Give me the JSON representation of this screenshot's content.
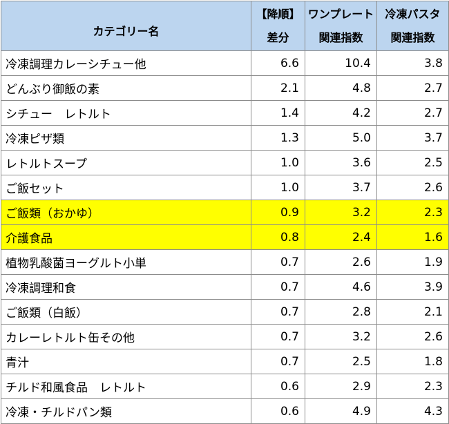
{
  "table": {
    "headers": {
      "category": "カテゴリー名",
      "diff_line1": "【降順】",
      "diff_line2": "差分",
      "oneplate_line1": "ワンプレート",
      "oneplate_line2": "関連指数",
      "pasta_line1": "冷凍パスタ",
      "pasta_line2": "関連指数"
    },
    "highlight_color": "#ffff00",
    "header_color": "#bcd5ef",
    "rows": [
      {
        "name": "冷凍調理カレーシチュー他",
        "diff": "6.6",
        "oneplate": "10.4",
        "pasta": "3.8",
        "highlight": false
      },
      {
        "name": "どんぶり御飯の素",
        "diff": "2.1",
        "oneplate": "4.8",
        "pasta": "2.7",
        "highlight": false
      },
      {
        "name": "シチュー　レトルト",
        "diff": "1.4",
        "oneplate": "4.2",
        "pasta": "2.7",
        "highlight": false
      },
      {
        "name": "冷凍ピザ類",
        "diff": "1.3",
        "oneplate": "5.0",
        "pasta": "3.7",
        "highlight": false
      },
      {
        "name": "レトルトスープ",
        "diff": "1.0",
        "oneplate": "3.6",
        "pasta": "2.5",
        "highlight": false
      },
      {
        "name": "ご飯セット",
        "diff": "1.0",
        "oneplate": "3.7",
        "pasta": "2.6",
        "highlight": false
      },
      {
        "name": "ご飯類（おかゆ）",
        "diff": "0.9",
        "oneplate": "3.2",
        "pasta": "2.3",
        "highlight": true
      },
      {
        "name": "介護食品",
        "diff": "0.8",
        "oneplate": "2.4",
        "pasta": "1.6",
        "highlight": true
      },
      {
        "name": "植物乳酸菌ヨーグルト小単",
        "diff": "0.7",
        "oneplate": "2.6",
        "pasta": "1.9",
        "highlight": false
      },
      {
        "name": "冷凍調理和食",
        "diff": "0.7",
        "oneplate": "4.6",
        "pasta": "3.9",
        "highlight": false
      },
      {
        "name": "ご飯類（白飯）",
        "diff": "0.7",
        "oneplate": "2.8",
        "pasta": "2.1",
        "highlight": false
      },
      {
        "name": "カレーレトルト缶その他",
        "diff": "0.7",
        "oneplate": "3.2",
        "pasta": "2.6",
        "highlight": false
      },
      {
        "name": "青汁",
        "diff": "0.7",
        "oneplate": "2.5",
        "pasta": "1.8",
        "highlight": false
      },
      {
        "name": "チルド和風食品　レトルト",
        "diff": "0.6",
        "oneplate": "2.9",
        "pasta": "2.3",
        "highlight": false
      },
      {
        "name": "冷凍・チルドパン類",
        "diff": "0.6",
        "oneplate": "4.9",
        "pasta": "4.3",
        "highlight": false
      }
    ]
  }
}
